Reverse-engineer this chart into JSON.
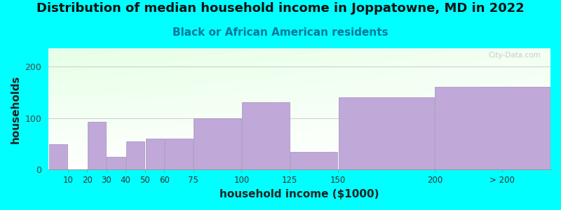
{
  "title": "Distribution of median household income in Joppatowne, MD in 2022",
  "subtitle": "Black or African American residents",
  "xlabel": "household income ($1000)",
  "ylabel": "households",
  "background_color": "#00FFFF",
  "bar_color": "#C0A8D8",
  "bar_edge_color": "#A090C0",
  "watermark": "City-Data.com",
  "bin_lefts": [
    0,
    10,
    20,
    30,
    40,
    50,
    60,
    75,
    100,
    125,
    150,
    200
  ],
  "bin_rights": [
    10,
    20,
    30,
    40,
    50,
    60,
    75,
    100,
    125,
    150,
    200,
    260
  ],
  "heights": [
    50,
    0,
    93,
    25,
    55,
    60,
    60,
    100,
    130,
    35,
    140,
    160
  ],
  "tick_positions": [
    10,
    20,
    30,
    40,
    50,
    60,
    75,
    100,
    125,
    150,
    200,
    235
  ],
  "tick_labels": [
    "10",
    "20",
    "30",
    "40",
    "50",
    "60",
    "75",
    "100",
    "125",
    "150",
    "200",
    "> 200"
  ],
  "xlim": [
    0,
    260
  ],
  "ylim": [
    0,
    235
  ],
  "yticks": [
    0,
    100,
    200
  ],
  "title_fontsize": 13,
  "subtitle_fontsize": 11,
  "axis_label_fontsize": 11
}
